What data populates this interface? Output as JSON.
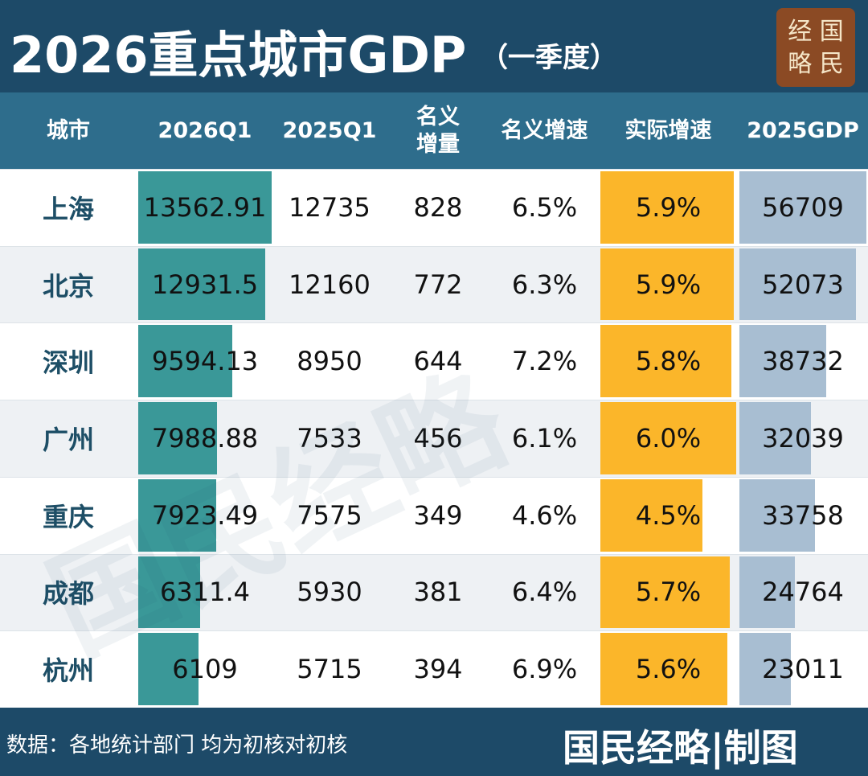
{
  "header": {
    "title": "2026重点城市GDP",
    "subtitle": "（一季度）",
    "logo": [
      "经 国",
      "略 民"
    ]
  },
  "table": {
    "columns": [
      "城市",
      "2026Q1",
      "2025Q1",
      "名义增量",
      "名义增速",
      "实际增速",
      "2025GDP"
    ],
    "rows": [
      [
        "上海",
        13562.91,
        12735,
        828,
        "6.5%",
        "5.9%",
        56709
      ],
      [
        "北京",
        12931.5,
        12160,
        772,
        "6.3%",
        "5.9%",
        52073
      ],
      [
        "深圳",
        9594.13,
        8950,
        644,
        "7.2%",
        "5.8%",
        38732
      ],
      [
        "广州",
        7988.88,
        7533,
        456,
        "6.1%",
        "6.0%",
        32039
      ],
      [
        "重庆",
        7923.49,
        7575,
        349,
        "4.6%",
        "4.5%",
        33758
      ],
      [
        "成都",
        6311.4,
        5930,
        381,
        "6.4%",
        "5.7%",
        24764
      ],
      [
        "杭州",
        6109,
        5715,
        394,
        "6.9%",
        "5.6%",
        23011
      ]
    ]
  },
  "watermark": "国民经略",
  "footer": {
    "source": "数据：各地统计部门 均为初核对初核",
    "credit": "国民经略|制图"
  }
}
